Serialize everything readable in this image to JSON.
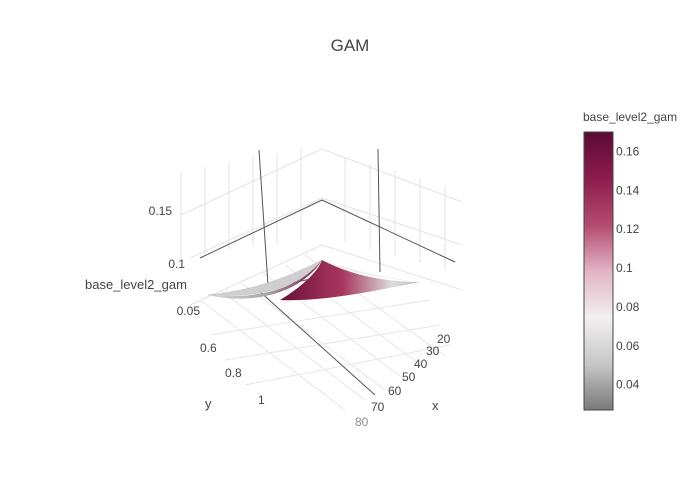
{
  "chart_data": {
    "type": "surface",
    "title": "GAM",
    "axes": {
      "x": {
        "label": "x",
        "ticks": [
          "20",
          "30",
          "40",
          "50",
          "60",
          "70",
          "80"
        ],
        "range": [
          15,
          80
        ]
      },
      "y": {
        "label": "y",
        "ticks": [
          "0.6",
          "0.8",
          "1"
        ],
        "range": [
          0.5,
          1.0
        ]
      },
      "z": {
        "label": "base_level2_gam",
        "ticks": [
          "0.05",
          "0.1",
          "0.15"
        ],
        "range": [
          0.0,
          0.18
        ]
      }
    },
    "surface": {
      "z_min": 0.03,
      "z_max": 0.17,
      "description_points": [
        {
          "x": 15,
          "y": 0.5,
          "z": 0.16
        },
        {
          "x": 15,
          "y": 1.0,
          "z": 0.07
        },
        {
          "x": 80,
          "y": 0.5,
          "z": 0.07
        },
        {
          "x": 80,
          "y": 1.0,
          "z": 0.035
        }
      ]
    },
    "colorbar": {
      "title": "base_level2_gam",
      "ticks": [
        "0.16",
        "0.14",
        "0.12",
        "0.1",
        "0.08",
        "0.06",
        "0.04"
      ],
      "tick_values": [
        0.16,
        0.14,
        0.12,
        0.1,
        0.08,
        0.06,
        0.04
      ],
      "range": [
        0.027,
        0.17
      ],
      "colors": [
        "#5b0a35",
        "#8c1c4d",
        "#b34b6f",
        "#e2b3c4",
        "#f2eff0",
        "#c7c7c7",
        "#7a7a7a"
      ]
    },
    "grid": true,
    "legend": "right"
  }
}
